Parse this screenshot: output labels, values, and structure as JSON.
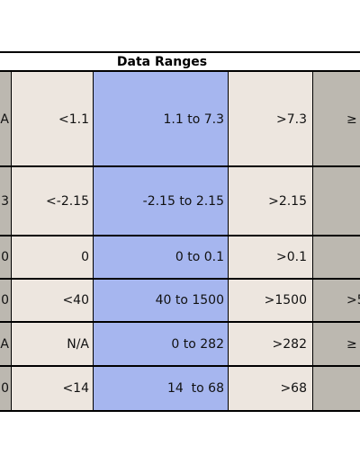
{
  "table": {
    "title": "Data Ranges",
    "rows": [
      [
        "A",
        "<1.1",
        "1.1 to 7.3",
        ">7.3",
        "≥"
      ],
      [
        "3",
        "<-2.15",
        "-2.15 to 2.15",
        ">2.15",
        null
      ],
      [
        "0",
        "0",
        "0 to 0.1",
        ">0.1",
        null
      ],
      [
        "0",
        "<40",
        "40 to 1500",
        ">1500",
        ">5"
      ],
      [
        "A",
        "N/A",
        "0 to 282",
        ">282",
        "≥"
      ],
      [
        "0",
        "<14",
        "14  to 68",
        ">68",
        null
      ]
    ]
  }
}
